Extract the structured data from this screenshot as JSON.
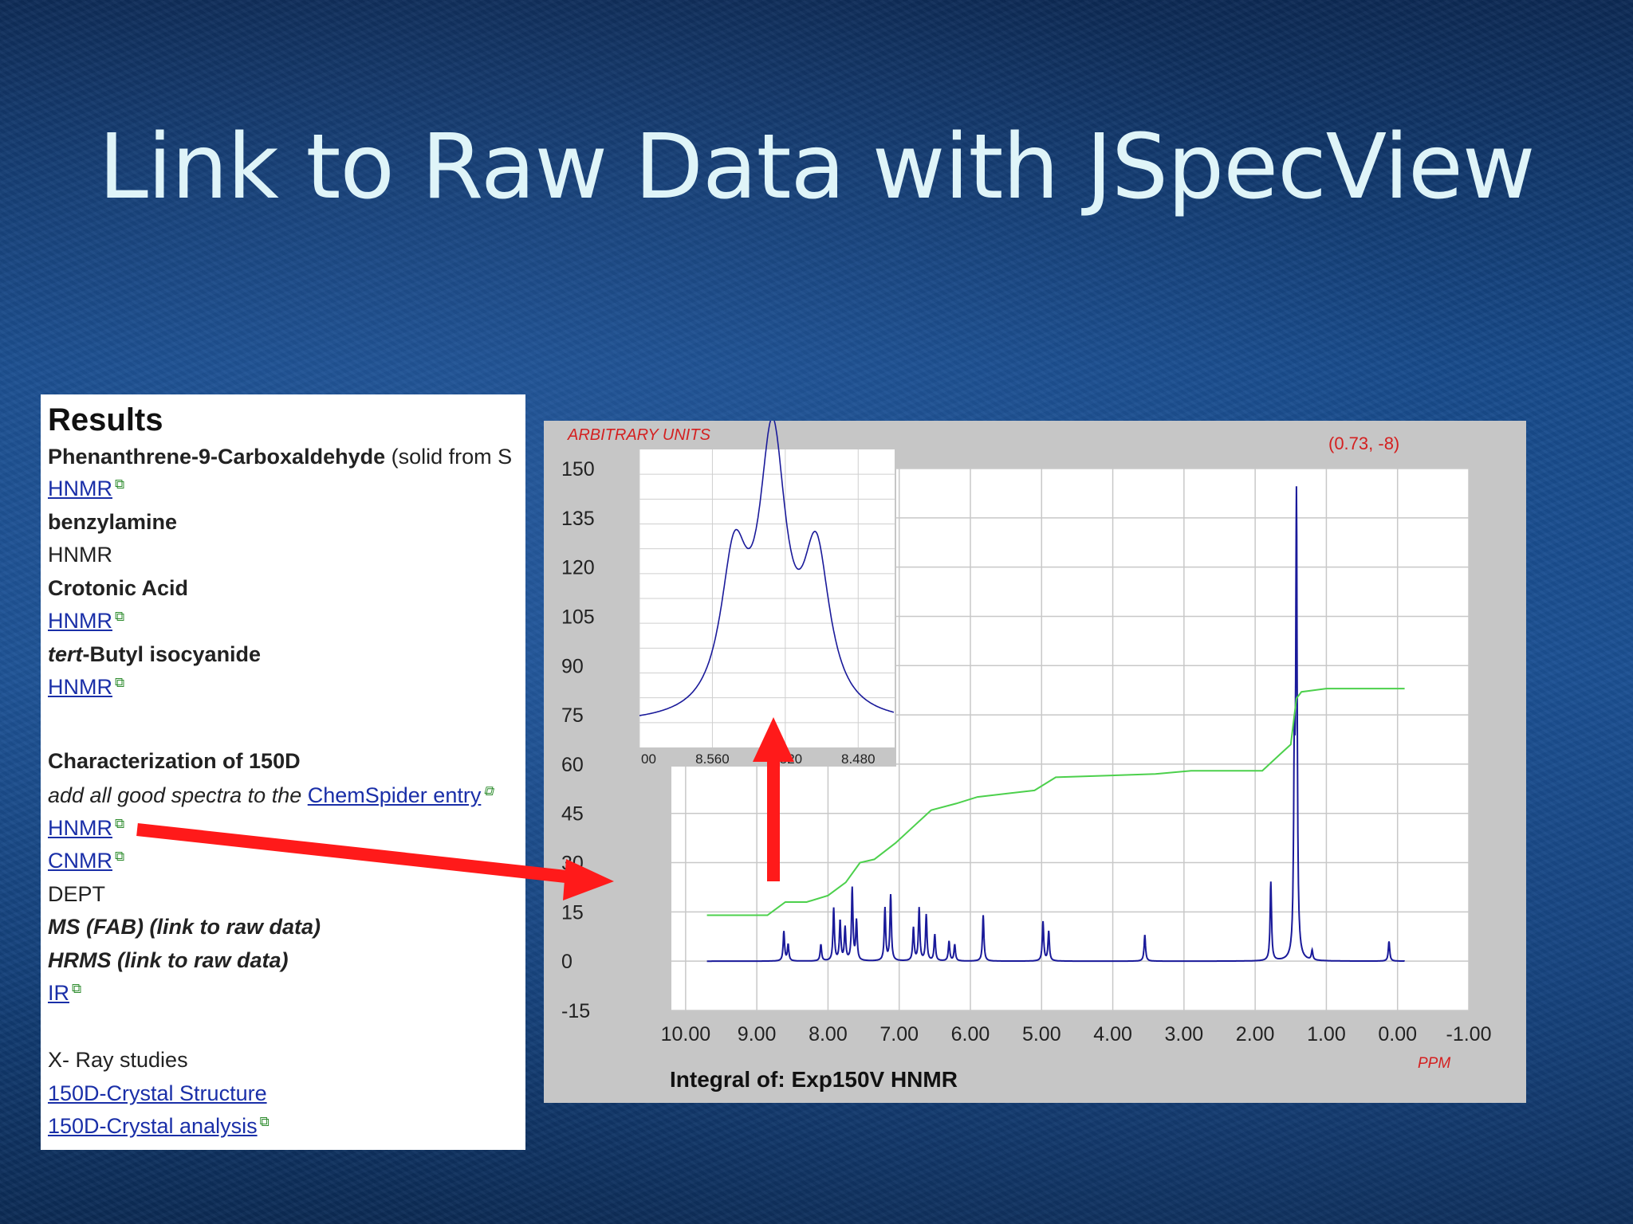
{
  "slide": {
    "title": "Link to Raw Data with JSpecView"
  },
  "results": {
    "heading": "Results",
    "compound1": {
      "name": "Phenanthrene-9-Carboxaldehyde",
      "note": " (solid from S",
      "link": "HNMR"
    },
    "compound2": {
      "name": "benzylamine",
      "text": "HNMR"
    },
    "compound3": {
      "name": "Crotonic Acid",
      "link": "HNMR"
    },
    "compound4": {
      "name_italic": "tert",
      "name_rest": "-Butyl isocyanide",
      "link": "HNMR"
    },
    "characterization": {
      "heading": "Characterization of 150D",
      "instruction": "add all good spectra to the ",
      "chemspider_link": "ChemSpider entry",
      "hnmr": "HNMR",
      "cnmr": "CNMR",
      "dept": "DEPT",
      "ms": "MS (FAB) (link to raw data)",
      "hrms": "HRMS (link to raw data)",
      "ir": "IR"
    },
    "xray": {
      "heading": "X- Ray studies",
      "structure_link": "150D-Crystal Structure",
      "analysis_link": "150D-Crystal analysis"
    }
  },
  "viewer": {
    "y_unit_label": "ARBITRARY UNITS",
    "coordinate_readout": "(0.73, -8)",
    "x_unit_label": "PPM",
    "caption": "Integral of: Exp150V HNMR",
    "inset_ticks": [
      "00",
      "8.560",
      "8.520",
      "8.480"
    ]
  },
  "colors": {
    "spectrum": "#1a1a9a",
    "integral": "#4cd04c",
    "arrow": "#ff1a1a",
    "readout": "#d42020",
    "link": "#1a2fa8"
  },
  "chart_data": {
    "type": "line",
    "title": "",
    "xlabel": "PPM",
    "ylabel": "ARBITRARY UNITS",
    "x_ticks": [
      "10.00",
      "9.00",
      "8.00",
      "7.00",
      "6.00",
      "5.00",
      "4.00",
      "3.00",
      "2.00",
      "1.00",
      "0.00",
      "-1.00"
    ],
    "y_ticks": [
      "150",
      "135",
      "120",
      "105",
      "90",
      "75",
      "60",
      "45",
      "30",
      "15",
      "0",
      "-15"
    ],
    "xlim": [
      10.2,
      -1.0
    ],
    "ylim": [
      -15,
      150
    ],
    "grid": true,
    "series": [
      {
        "peaks": [
          {
            "x": 8.62,
            "y": 9
          },
          {
            "x": 8.56,
            "y": 5
          },
          {
            "x": 8.1,
            "y": 5
          },
          {
            "x": 7.92,
            "y": 16
          },
          {
            "x": 7.83,
            "y": 12
          },
          {
            "x": 7.76,
            "y": 10
          },
          {
            "x": 7.66,
            "y": 22
          },
          {
            "x": 7.6,
            "y": 12
          },
          {
            "x": 7.2,
            "y": 16
          },
          {
            "x": 7.12,
            "y": 20
          },
          {
            "x": 6.8,
            "y": 10
          },
          {
            "x": 6.72,
            "y": 16
          },
          {
            "x": 6.62,
            "y": 14
          },
          {
            "x": 6.5,
            "y": 8
          },
          {
            "x": 6.3,
            "y": 6
          },
          {
            "x": 6.22,
            "y": 5
          },
          {
            "x": 5.82,
            "y": 14
          },
          {
            "x": 4.98,
            "y": 12
          },
          {
            "x": 4.9,
            "y": 9
          },
          {
            "x": 3.55,
            "y": 8
          },
          {
            "x": 1.78,
            "y": 24
          },
          {
            "x": 1.45,
            "y": 55
          },
          {
            "x": 1.42,
            "y": 137
          },
          {
            "x": 1.2,
            "y": 3
          },
          {
            "x": 0.12,
            "y": 6
          }
        ]
      },
      {
        "points": [
          [
            9.7,
            14
          ],
          [
            8.85,
            14
          ],
          [
            8.6,
            18
          ],
          [
            8.3,
            18
          ],
          [
            8.0,
            20
          ],
          [
            7.75,
            24
          ],
          [
            7.55,
            30
          ],
          [
            7.35,
            31
          ],
          [
            7.05,
            36
          ],
          [
            6.85,
            40
          ],
          [
            6.55,
            46
          ],
          [
            6.2,
            48
          ],
          [
            5.9,
            50
          ],
          [
            5.1,
            52
          ],
          [
            4.8,
            56
          ],
          [
            3.4,
            57
          ],
          [
            2.9,
            58
          ],
          [
            1.9,
            58
          ],
          [
            1.65,
            63
          ],
          [
            1.5,
            66
          ],
          [
            1.42,
            80
          ],
          [
            1.35,
            82
          ],
          [
            1.0,
            83
          ],
          [
            -0.1,
            83
          ]
        ]
      }
    ],
    "inset": {
      "xlim": [
        8.6,
        8.46
      ],
      "x_ticks": [
        "00",
        "8.560",
        "8.520",
        "8.480"
      ],
      "peaks": [
        {
          "x": 8.548,
          "y": 0.55
        },
        {
          "x": 8.527,
          "y": 1.0
        },
        {
          "x": 8.503,
          "y": 0.58
        }
      ]
    }
  }
}
